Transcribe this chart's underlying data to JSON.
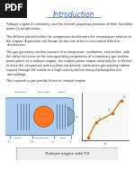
{
  "title": "Introduction",
  "title_color": "#3366cc",
  "background_color": "#ffffff",
  "pdf_badge_text": "PDF",
  "pdf_badge_bg": "#1a1a1a",
  "pdf_badge_color": "#ffffff",
  "body_text": [
    "Turbojet engine is commonly used for aircraft propulsion because of their favorable power to weight ratios.",
    "The diffuser placed before the compressor decelerates the incoming air relative to the engine. A pressure rise known as the ram effect is associated with this deceleration.",
    "The gas generator section consists of a compressor, combustor, and turbine, with the same functions as the corresponding components of a stationary gas turbine power plant. In a turbojet engine, the turbine power output need only be sufficient to drive the compressor and auxiliary equipment; combustion gas leaving turbine expand through the nozzle to a high velocity before being discharged to the surroundings.",
    "This expanding gas provide thrust in turbojet engine."
  ],
  "caption": "Turbojet engine with T-S",
  "ts_points_s": [
    0.15,
    0.32,
    0.68,
    0.88
  ],
  "ts_points_T": [
    0.08,
    0.42,
    0.62,
    0.92
  ],
  "ts_line_color": "#cc6600",
  "engine_bg_color": "#c8dff0"
}
